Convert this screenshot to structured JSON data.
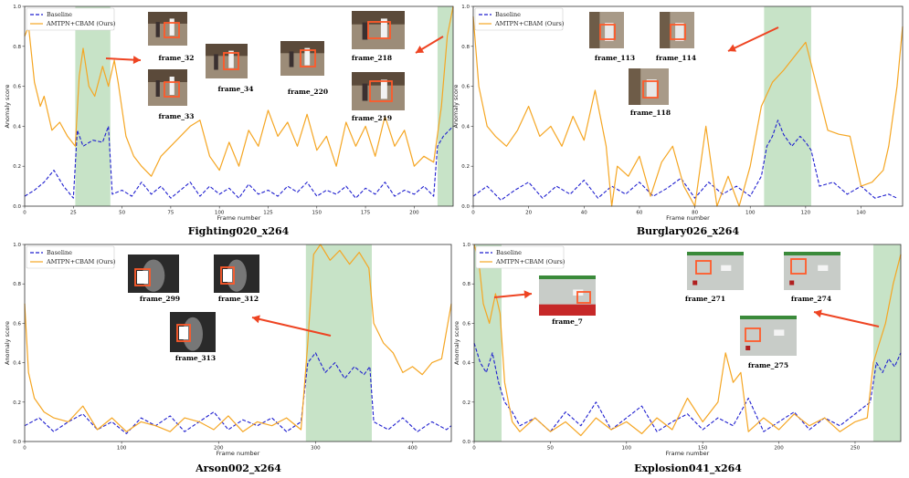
{
  "colors": {
    "baseline": "#1f1fcf",
    "ours": "#f5a623",
    "anomaly_band": "#b9dcb9",
    "arrow": "#ee4422",
    "box": "#ff5a2a"
  },
  "chart_data": [
    {
      "type": "line",
      "caption": "Fighting020_x264",
      "xlabel": "Frame number",
      "ylabel": "Anomaly score",
      "xlim": [
        0,
        220
      ],
      "ylim": [
        0,
        1
      ],
      "xticks": [
        0,
        25,
        50,
        75,
        100,
        125,
        150,
        175,
        200
      ],
      "yticks": [
        0.0,
        0.2,
        0.4,
        0.6,
        0.8,
        1.0
      ],
      "anomaly_regions": [
        [
          26,
          44
        ],
        [
          212,
          220
        ]
      ],
      "legend": [
        "Baseline",
        "AMTPN+CBAM (Ours)"
      ],
      "series": [
        {
          "name": "Baseline",
          "style": "dashed",
          "x": [
            0,
            5,
            10,
            15,
            20,
            25,
            27,
            30,
            35,
            40,
            43,
            45,
            50,
            55,
            60,
            65,
            70,
            75,
            80,
            85,
            90,
            95,
            100,
            105,
            110,
            115,
            120,
            125,
            130,
            135,
            140,
            145,
            150,
            155,
            160,
            165,
            170,
            175,
            180,
            185,
            190,
            195,
            200,
            205,
            210,
            212,
            215,
            220
          ],
          "values": [
            0.05,
            0.08,
            0.12,
            0.18,
            0.1,
            0.04,
            0.38,
            0.3,
            0.33,
            0.32,
            0.4,
            0.06,
            0.08,
            0.05,
            0.12,
            0.06,
            0.1,
            0.04,
            0.08,
            0.12,
            0.05,
            0.1,
            0.06,
            0.09,
            0.04,
            0.11,
            0.06,
            0.08,
            0.05,
            0.1,
            0.07,
            0.12,
            0.05,
            0.08,
            0.06,
            0.1,
            0.04,
            0.09,
            0.06,
            0.12,
            0.05,
            0.08,
            0.06,
            0.1,
            0.05,
            0.3,
            0.35,
            0.4
          ]
        },
        {
          "name": "AMTPN+CBAM (Ours)",
          "style": "solid",
          "x": [
            0,
            2,
            5,
            8,
            10,
            14,
            18,
            22,
            26,
            28,
            30,
            33,
            36,
            40,
            43,
            46,
            48,
            52,
            56,
            60,
            65,
            70,
            75,
            80,
            85,
            90,
            95,
            100,
            105,
            110,
            115,
            120,
            125,
            130,
            135,
            140,
            145,
            150,
            155,
            160,
            165,
            170,
            175,
            180,
            185,
            190,
            195,
            200,
            205,
            210,
            214,
            217,
            220
          ],
          "values": [
            0.85,
            0.9,
            0.62,
            0.5,
            0.55,
            0.38,
            0.42,
            0.35,
            0.3,
            0.65,
            0.79,
            0.6,
            0.55,
            0.7,
            0.6,
            0.73,
            0.62,
            0.35,
            0.25,
            0.2,
            0.15,
            0.25,
            0.3,
            0.35,
            0.4,
            0.43,
            0.25,
            0.18,
            0.32,
            0.2,
            0.38,
            0.3,
            0.48,
            0.35,
            0.42,
            0.3,
            0.46,
            0.28,
            0.35,
            0.2,
            0.42,
            0.3,
            0.4,
            0.25,
            0.45,
            0.3,
            0.38,
            0.2,
            0.25,
            0.22,
            0.5,
            0.85,
            1.0
          ]
        }
      ],
      "frames": [
        "frame_32",
        "frame_33",
        "frame_34",
        "frame_220",
        "frame_218",
        "frame_219"
      ]
    },
    {
      "type": "line",
      "caption": "Burglary026_x264",
      "xlabel": "Frame number",
      "ylabel": "Anomaly score",
      "xlim": [
        0,
        155
      ],
      "ylim": [
        0,
        1
      ],
      "xticks": [
        0,
        20,
        40,
        60,
        80,
        100,
        120,
        140
      ],
      "yticks": [
        0.0,
        0.2,
        0.4,
        0.6,
        0.8,
        1.0
      ],
      "anomaly_regions": [
        [
          105,
          122
        ]
      ],
      "legend": [
        "Baseline",
        "AMTPN+CBAM (Ours)"
      ],
      "series": [
        {
          "name": "Baseline",
          "style": "dashed",
          "x": [
            0,
            5,
            10,
            15,
            20,
            25,
            30,
            35,
            40,
            45,
            50,
            55,
            60,
            65,
            70,
            75,
            80,
            85,
            90,
            95,
            100,
            104,
            106,
            108,
            110,
            112,
            115,
            118,
            120,
            122,
            125,
            130,
            135,
            140,
            145,
            150,
            153
          ],
          "values": [
            0.05,
            0.1,
            0.03,
            0.08,
            0.12,
            0.04,
            0.1,
            0.06,
            0.13,
            0.04,
            0.1,
            0.06,
            0.12,
            0.05,
            0.09,
            0.14,
            0.04,
            0.12,
            0.06,
            0.1,
            0.05,
            0.15,
            0.3,
            0.35,
            0.43,
            0.36,
            0.3,
            0.35,
            0.32,
            0.28,
            0.1,
            0.12,
            0.06,
            0.1,
            0.04,
            0.06,
            0.04
          ]
        },
        {
          "name": "AMTPN+CBAM (Ours)",
          "style": "solid",
          "x": [
            0,
            2,
            5,
            8,
            12,
            16,
            20,
            24,
            28,
            32,
            36,
            40,
            44,
            48,
            50,
            52,
            56,
            60,
            64,
            68,
            72,
            76,
            80,
            84,
            88,
            92,
            96,
            100,
            104,
            108,
            112,
            116,
            120,
            124,
            128,
            132,
            136,
            140,
            144,
            148,
            150,
            153,
            155
          ],
          "values": [
            0.95,
            0.6,
            0.4,
            0.35,
            0.3,
            0.38,
            0.5,
            0.35,
            0.4,
            0.3,
            0.45,
            0.33,
            0.58,
            0.3,
            0.0,
            0.2,
            0.15,
            0.25,
            0.05,
            0.22,
            0.3,
            0.1,
            0.0,
            0.4,
            0.0,
            0.15,
            0.0,
            0.2,
            0.5,
            0.62,
            0.68,
            0.75,
            0.82,
            0.6,
            0.38,
            0.36,
            0.35,
            0.1,
            0.12,
            0.18,
            0.3,
            0.6,
            0.9
          ]
        }
      ],
      "frames": [
        "frame_113",
        "frame_114",
        "frame_118"
      ]
    },
    {
      "type": "line",
      "caption": "Arson002_x264",
      "xlabel": "Frame number",
      "ylabel": "Anomaly score",
      "xlim": [
        0,
        440
      ],
      "ylim": [
        0,
        1
      ],
      "xticks": [
        0,
        100,
        200,
        300,
        400
      ],
      "yticks": [
        0.0,
        0.2,
        0.4,
        0.6,
        0.8,
        1.0
      ],
      "anomaly_regions": [
        [
          290,
          358
        ]
      ],
      "legend": [
        "Baseline",
        "AMTPN+CBAM (Ours)"
      ],
      "series": [
        {
          "name": "Baseline",
          "style": "dashed",
          "x": [
            0,
            15,
            30,
            45,
            60,
            75,
            90,
            105,
            120,
            135,
            150,
            165,
            180,
            195,
            210,
            225,
            240,
            255,
            270,
            285,
            292,
            300,
            310,
            320,
            330,
            340,
            350,
            356,
            360,
            375,
            390,
            405,
            420,
            435,
            440
          ],
          "values": [
            0.08,
            0.12,
            0.05,
            0.1,
            0.14,
            0.06,
            0.1,
            0.04,
            0.12,
            0.08,
            0.13,
            0.05,
            0.1,
            0.15,
            0.06,
            0.11,
            0.08,
            0.12,
            0.05,
            0.1,
            0.4,
            0.45,
            0.35,
            0.4,
            0.32,
            0.38,
            0.34,
            0.38,
            0.1,
            0.06,
            0.12,
            0.05,
            0.1,
            0.06,
            0.08
          ]
        },
        {
          "name": "AMTPN+CBAM (Ours)",
          "style": "solid",
          "x": [
            0,
            4,
            10,
            20,
            30,
            45,
            60,
            75,
            90,
            105,
            120,
            135,
            150,
            165,
            180,
            195,
            210,
            225,
            240,
            255,
            270,
            285,
            292,
            298,
            305,
            315,
            325,
            335,
            345,
            355,
            360,
            370,
            380,
            390,
            400,
            410,
            420,
            430,
            440
          ],
          "values": [
            0.7,
            0.35,
            0.22,
            0.15,
            0.12,
            0.1,
            0.18,
            0.06,
            0.12,
            0.05,
            0.1,
            0.08,
            0.05,
            0.12,
            0.1,
            0.06,
            0.13,
            0.05,
            0.1,
            0.08,
            0.12,
            0.06,
            0.5,
            0.95,
            1.0,
            0.92,
            0.97,
            0.9,
            0.96,
            0.88,
            0.6,
            0.5,
            0.45,
            0.35,
            0.38,
            0.34,
            0.4,
            0.42,
            0.7
          ]
        }
      ],
      "frames": [
        "frame_299",
        "frame_312",
        "frame_313"
      ]
    },
    {
      "type": "line",
      "caption": "Explosion041_x264",
      "xlabel": "Frame number",
      "ylabel": "Anomaly score",
      "xlim": [
        0,
        280
      ],
      "ylim": [
        0,
        1
      ],
      "xticks": [
        0,
        50,
        100,
        150,
        200,
        250
      ],
      "yticks": [
        0.0,
        0.2,
        0.4,
        0.6,
        0.8,
        1.0
      ],
      "anomaly_regions": [
        [
          0,
          18
        ],
        [
          262,
          280
        ]
      ],
      "legend": [
        "Baseline",
        "AMTPN+CBAM (Ours)"
      ],
      "series": [
        {
          "name": "Baseline",
          "style": "dashed",
          "x": [
            0,
            4,
            8,
            12,
            16,
            20,
            25,
            30,
            40,
            50,
            60,
            70,
            80,
            90,
            100,
            110,
            120,
            130,
            140,
            150,
            160,
            170,
            180,
            190,
            200,
            210,
            220,
            230,
            240,
            250,
            260,
            264,
            268,
            272,
            276,
            280
          ],
          "values": [
            0.5,
            0.4,
            0.35,
            0.45,
            0.3,
            0.2,
            0.15,
            0.08,
            0.12,
            0.05,
            0.15,
            0.08,
            0.2,
            0.06,
            0.12,
            0.18,
            0.05,
            0.1,
            0.14,
            0.06,
            0.12,
            0.08,
            0.22,
            0.05,
            0.1,
            0.15,
            0.06,
            0.12,
            0.08,
            0.14,
            0.2,
            0.4,
            0.35,
            0.42,
            0.38,
            0.45
          ]
        },
        {
          "name": "AMTPN+CBAM (Ours)",
          "style": "solid",
          "x": [
            0,
            3,
            6,
            10,
            14,
            17,
            20,
            25,
            30,
            40,
            50,
            60,
            70,
            80,
            90,
            100,
            110,
            120,
            130,
            140,
            150,
            160,
            165,
            170,
            175,
            180,
            190,
            200,
            210,
            220,
            230,
            240,
            250,
            258,
            262,
            266,
            270,
            275,
            280
          ],
          "values": [
            1.0,
            0.92,
            0.7,
            0.6,
            0.75,
            0.65,
            0.3,
            0.1,
            0.05,
            0.12,
            0.05,
            0.1,
            0.03,
            0.12,
            0.06,
            0.1,
            0.04,
            0.12,
            0.06,
            0.22,
            0.1,
            0.2,
            0.45,
            0.3,
            0.35,
            0.05,
            0.12,
            0.06,
            0.14,
            0.08,
            0.12,
            0.05,
            0.1,
            0.12,
            0.4,
            0.5,
            0.6,
            0.8,
            0.95
          ]
        }
      ],
      "frames": [
        "frame_7",
        "frame_271",
        "frame_274",
        "frame_275"
      ]
    }
  ]
}
